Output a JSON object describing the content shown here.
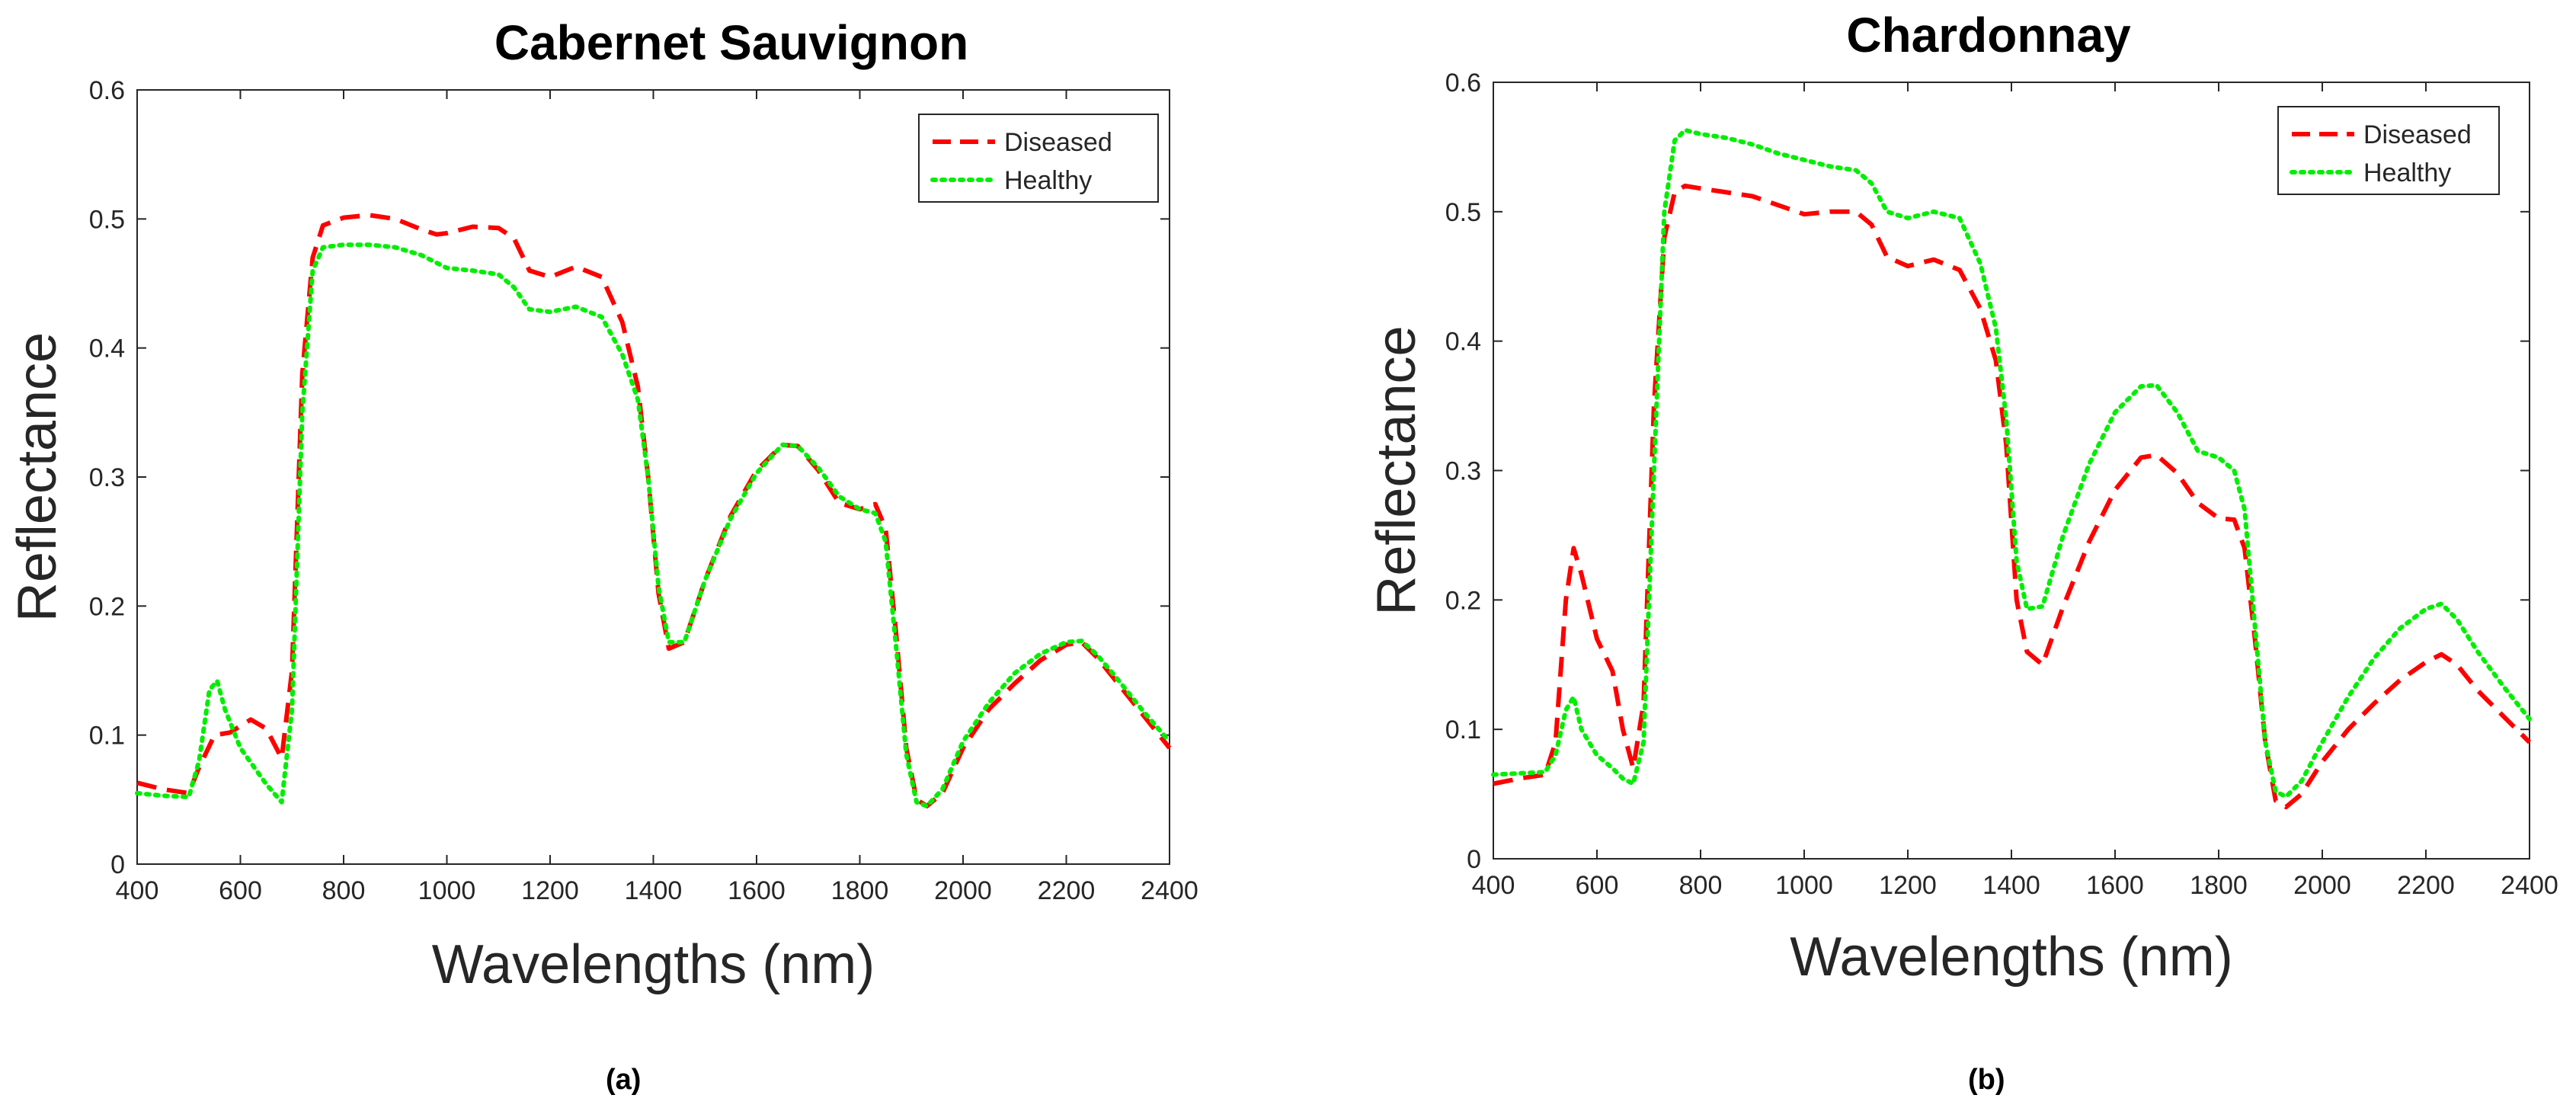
{
  "chart_data": [
    {
      "type": "line",
      "title": "Cabernet Sauvignon",
      "xlabel": "Wavelengths (nm)",
      "ylabel": "Reflectance",
      "xlim": [
        400,
        2400
      ],
      "ylim": [
        0,
        0.6
      ],
      "xticks": [
        "400",
        "600",
        "800",
        "1000",
        "1200",
        "1400",
        "1600",
        "1800",
        "2000",
        "2200",
        "2400"
      ],
      "yticks": [
        "0",
        "0.1",
        "0.2",
        "0.3",
        "0.4",
        "0.5",
        "0.6"
      ],
      "legend": "top-right",
      "caption": "(a)",
      "series": [
        {
          "name": "Diseased",
          "color": "#ff0000",
          "style": "dashed",
          "x": [
            400,
            450,
            500,
            520,
            550,
            580,
            620,
            650,
            680,
            700,
            720,
            740,
            760,
            800,
            850,
            900,
            950,
            980,
            1000,
            1050,
            1100,
            1130,
            1160,
            1200,
            1250,
            1300,
            1340,
            1370,
            1390,
            1410,
            1430,
            1460,
            1500,
            1550,
            1600,
            1650,
            1680,
            1720,
            1760,
            1800,
            1830,
            1850,
            1870,
            1890,
            1910,
            1930,
            1960,
            2000,
            2050,
            2100,
            2150,
            2200,
            2230,
            2260,
            2300,
            2350,
            2400
          ],
          "y": [
            0.063,
            0.058,
            0.055,
            0.075,
            0.1,
            0.102,
            0.112,
            0.105,
            0.082,
            0.15,
            0.38,
            0.47,
            0.495,
            0.501,
            0.503,
            0.5,
            0.492,
            0.488,
            0.489,
            0.494,
            0.493,
            0.485,
            0.46,
            0.455,
            0.463,
            0.455,
            0.42,
            0.37,
            0.3,
            0.21,
            0.167,
            0.172,
            0.22,
            0.27,
            0.305,
            0.325,
            0.324,
            0.305,
            0.28,
            0.275,
            0.279,
            0.26,
            0.18,
            0.09,
            0.05,
            0.045,
            0.055,
            0.09,
            0.12,
            0.14,
            0.158,
            0.17,
            0.172,
            0.16,
            0.14,
            0.115,
            0.09
          ]
        },
        {
          "name": "Healthy",
          "color": "#00ee00",
          "style": "dotted",
          "x": [
            400,
            450,
            500,
            520,
            540,
            555,
            570,
            600,
            650,
            680,
            700,
            720,
            740,
            760,
            800,
            850,
            900,
            950,
            980,
            1000,
            1050,
            1100,
            1130,
            1160,
            1200,
            1250,
            1300,
            1340,
            1370,
            1390,
            1410,
            1430,
            1460,
            1500,
            1550,
            1600,
            1650,
            1680,
            1720,
            1760,
            1800,
            1830,
            1850,
            1870,
            1890,
            1910,
            1930,
            1960,
            2000,
            2050,
            2100,
            2150,
            2200,
            2230,
            2260,
            2300,
            2350,
            2400
          ],
          "y": [
            0.055,
            0.053,
            0.052,
            0.08,
            0.135,
            0.142,
            0.12,
            0.09,
            0.062,
            0.048,
            0.12,
            0.35,
            0.46,
            0.478,
            0.48,
            0.48,
            0.478,
            0.472,
            0.466,
            0.462,
            0.46,
            0.457,
            0.447,
            0.43,
            0.428,
            0.432,
            0.424,
            0.395,
            0.36,
            0.3,
            0.215,
            0.172,
            0.172,
            0.22,
            0.268,
            0.303,
            0.325,
            0.324,
            0.307,
            0.285,
            0.275,
            0.272,
            0.25,
            0.17,
            0.085,
            0.048,
            0.045,
            0.058,
            0.095,
            0.125,
            0.148,
            0.163,
            0.172,
            0.173,
            0.162,
            0.143,
            0.118,
            0.095
          ]
        }
      ]
    },
    {
      "type": "line",
      "title": "Chardonnay",
      "xlabel": "Wavelengths (nm)",
      "ylabel": "Reflectance",
      "xlim": [
        400,
        2400
      ],
      "ylim": [
        0,
        0.6
      ],
      "xticks": [
        "400",
        "600",
        "800",
        "1000",
        "1200",
        "1400",
        "1600",
        "1800",
        "2000",
        "2200",
        "2400"
      ],
      "yticks": [
        "0",
        "0.1",
        "0.2",
        "0.3",
        "0.4",
        "0.5",
        "0.6"
      ],
      "legend": "top-right",
      "caption": "(b)",
      "series": [
        {
          "name": "Diseased",
          "color": "#ff0000",
          "style": "dashed",
          "x": [
            400,
            450,
            500,
            520,
            540,
            555,
            570,
            600,
            630,
            650,
            670,
            690,
            710,
            730,
            750,
            770,
            800,
            850,
            900,
            950,
            1000,
            1050,
            1100,
            1130,
            1160,
            1200,
            1250,
            1300,
            1340,
            1370,
            1390,
            1410,
            1430,
            1460,
            1500,
            1550,
            1600,
            1650,
            1680,
            1720,
            1760,
            1800,
            1830,
            1850,
            1870,
            1890,
            1910,
            1930,
            1960,
            2000,
            2050,
            2100,
            2150,
            2200,
            2230,
            2260,
            2300,
            2350,
            2400
          ],
          "y": [
            0.058,
            0.062,
            0.065,
            0.09,
            0.2,
            0.24,
            0.22,
            0.17,
            0.145,
            0.1,
            0.07,
            0.12,
            0.35,
            0.48,
            0.515,
            0.52,
            0.518,
            0.515,
            0.512,
            0.505,
            0.498,
            0.5,
            0.5,
            0.49,
            0.465,
            0.458,
            0.463,
            0.455,
            0.425,
            0.385,
            0.32,
            0.2,
            0.16,
            0.15,
            0.195,
            0.245,
            0.285,
            0.31,
            0.312,
            0.298,
            0.275,
            0.263,
            0.262,
            0.24,
            0.17,
            0.09,
            0.045,
            0.04,
            0.05,
            0.075,
            0.1,
            0.12,
            0.138,
            0.152,
            0.158,
            0.15,
            0.13,
            0.11,
            0.09
          ]
        },
        {
          "name": "Healthy",
          "color": "#00ee00",
          "style": "dotted",
          "x": [
            400,
            450,
            500,
            520,
            540,
            555,
            570,
            600,
            630,
            650,
            670,
            690,
            710,
            730,
            750,
            770,
            800,
            850,
            900,
            950,
            1000,
            1050,
            1100,
            1130,
            1160,
            1200,
            1250,
            1300,
            1340,
            1370,
            1390,
            1410,
            1430,
            1460,
            1500,
            1550,
            1600,
            1650,
            1680,
            1720,
            1760,
            1800,
            1830,
            1850,
            1870,
            1890,
            1910,
            1930,
            1960,
            2000,
            2050,
            2100,
            2150,
            2200,
            2230,
            2260,
            2300,
            2350,
            2400
          ],
          "y": [
            0.065,
            0.066,
            0.067,
            0.08,
            0.115,
            0.125,
            0.1,
            0.08,
            0.07,
            0.062,
            0.058,
            0.09,
            0.3,
            0.5,
            0.555,
            0.563,
            0.56,
            0.557,
            0.552,
            0.545,
            0.54,
            0.535,
            0.532,
            0.522,
            0.5,
            0.495,
            0.5,
            0.495,
            0.46,
            0.41,
            0.34,
            0.23,
            0.193,
            0.195,
            0.25,
            0.305,
            0.345,
            0.365,
            0.366,
            0.345,
            0.315,
            0.31,
            0.3,
            0.27,
            0.18,
            0.09,
            0.052,
            0.048,
            0.06,
            0.09,
            0.125,
            0.155,
            0.178,
            0.193,
            0.197,
            0.185,
            0.16,
            0.133,
            0.108
          ]
        }
      ]
    }
  ]
}
